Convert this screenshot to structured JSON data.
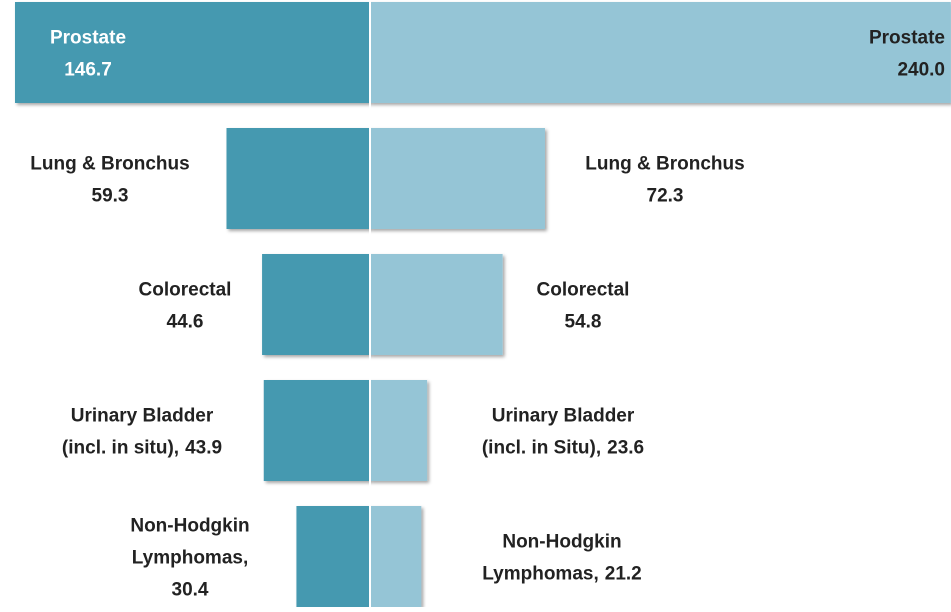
{
  "chart_data": {
    "type": "butterfly",
    "series": [
      {
        "color": "#4499b0",
        "labels": [
          [
            "Prostate"
          ],
          [
            "Lung & Bronchus"
          ],
          [
            "Colorectal"
          ],
          [
            "Urinary Bladder",
            "(incl. in situ),"
          ],
          [
            "Non-Hodgkin",
            "Lymphomas,"
          ]
        ],
        "values": [
          146.7,
          59.3,
          44.6,
          43.9,
          30.4
        ],
        "value_labels": [
          "146.7",
          "59.3",
          "44.6",
          "43.9",
          "30.4"
        ]
      },
      {
        "color": "#95c5d6",
        "labels": [
          [
            "Prostate"
          ],
          [
            "Lung & Bronchus"
          ],
          [
            "Colorectal"
          ],
          [
            "Urinary Bladder",
            "(incl. in Situ),"
          ],
          [
            "Non-Hodgkin",
            "Lymphomas,"
          ]
        ],
        "values": [
          240.0,
          72.3,
          54.8,
          23.6,
          21.2
        ],
        "value_labels": [
          "240.0",
          "72.3",
          "54.8",
          "23.6",
          "21.2"
        ]
      }
    ]
  }
}
